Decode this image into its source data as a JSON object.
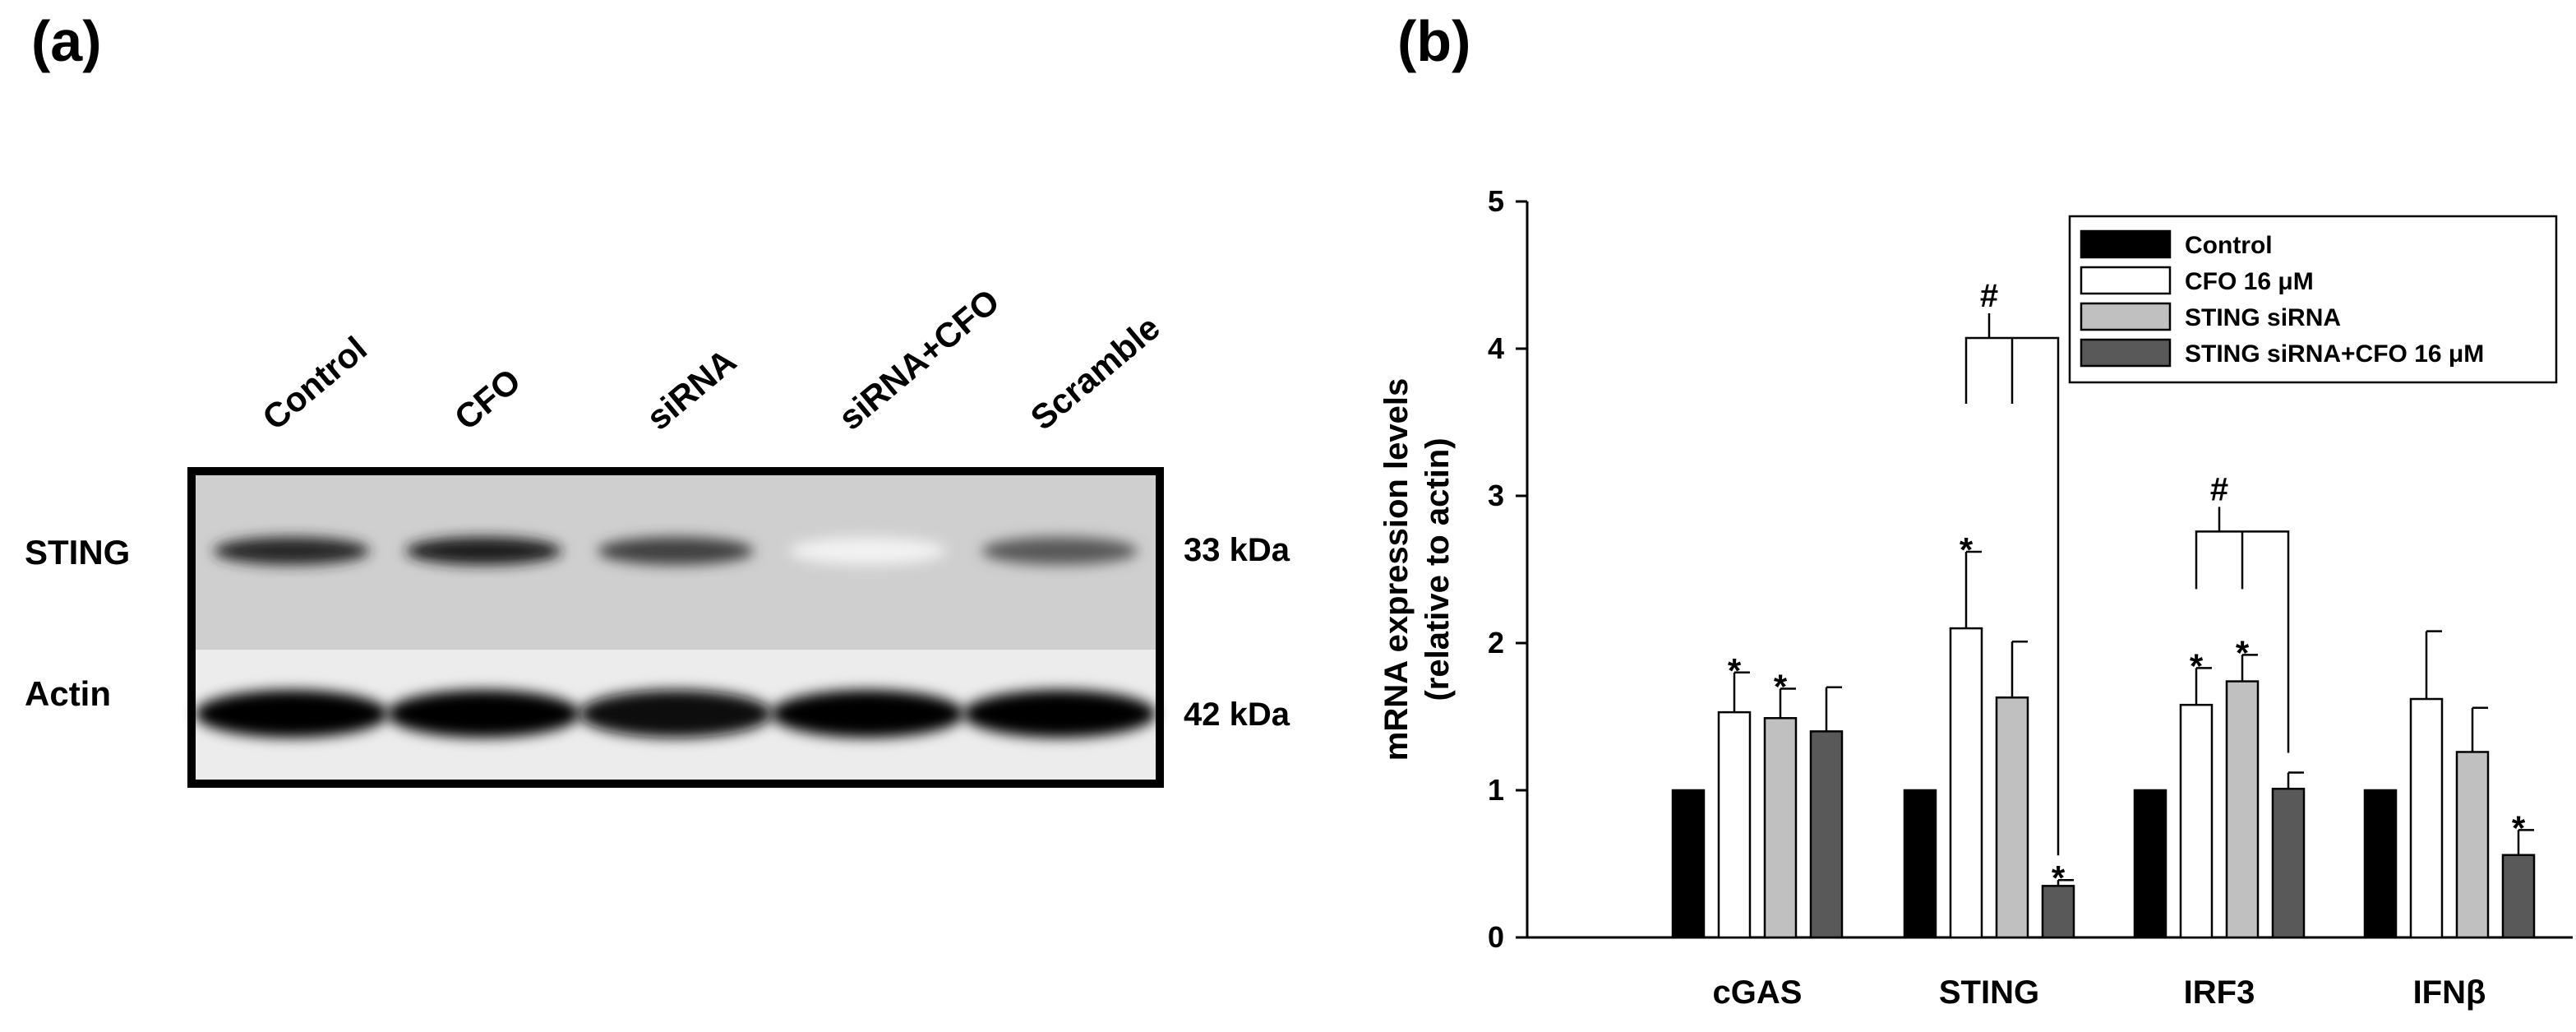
{
  "panel_a": {
    "label": "(a)",
    "lanes": [
      "Control",
      "CFO",
      "siRNA",
      "siRNA+CFO",
      "Scramble"
    ],
    "rows": [
      {
        "protein": "STING",
        "size": "33 kDa",
        "intensity": [
          0.85,
          0.9,
          0.75,
          0.05,
          0.65
        ]
      },
      {
        "protein": "Actin",
        "size": "42 kDa",
        "intensity": [
          1.0,
          1.0,
          0.95,
          1.0,
          1.0
        ]
      }
    ]
  },
  "panel_b": {
    "label": "(b)"
  },
  "chart_data": {
    "type": "bar",
    "title": "",
    "xlabel": "",
    "ylabel_lines": [
      "mRNA expression levels",
      "(relative to actin)"
    ],
    "ylim": [
      0,
      5
    ],
    "yticks": [
      "0",
      "1",
      "2",
      "3",
      "4",
      "5"
    ],
    "categories": [
      "cGAS",
      "STING",
      "IRF3",
      "IFNβ"
    ],
    "legend_position": "top-right",
    "series": [
      {
        "name": "Control",
        "color": "#000000",
        "values": [
          1.0,
          1.0,
          1.0,
          1.0
        ],
        "errors": [
          0,
          0,
          0,
          0
        ],
        "stars": [
          false,
          false,
          false,
          false
        ]
      },
      {
        "name": "CFO 16 μM",
        "color": "#ffffff",
        "values": [
          1.53,
          2.1,
          1.58,
          1.62
        ],
        "errors": [
          0.27,
          0.52,
          0.25,
          0.46
        ],
        "stars": [
          true,
          true,
          true,
          false
        ]
      },
      {
        "name": "STING siRNA",
        "color": "#c0c0c0",
        "values": [
          1.49,
          1.63,
          1.74,
          1.26
        ],
        "errors": [
          0.2,
          0.38,
          0.18,
          0.3
        ],
        "stars": [
          true,
          false,
          true,
          false
        ]
      },
      {
        "name": "STING siRNA+CFO 16 μM",
        "color": "#595959",
        "values": [
          1.4,
          0.35,
          1.01,
          0.56
        ],
        "errors": [
          0.3,
          0.04,
          0.11,
          0.17
        ],
        "stars": [
          false,
          true,
          false,
          true
        ]
      }
    ],
    "significance": [
      {
        "category": "STING",
        "symbol": "#"
      },
      {
        "category": "IRF3",
        "symbol": "#"
      }
    ],
    "star_symbol": "*"
  }
}
